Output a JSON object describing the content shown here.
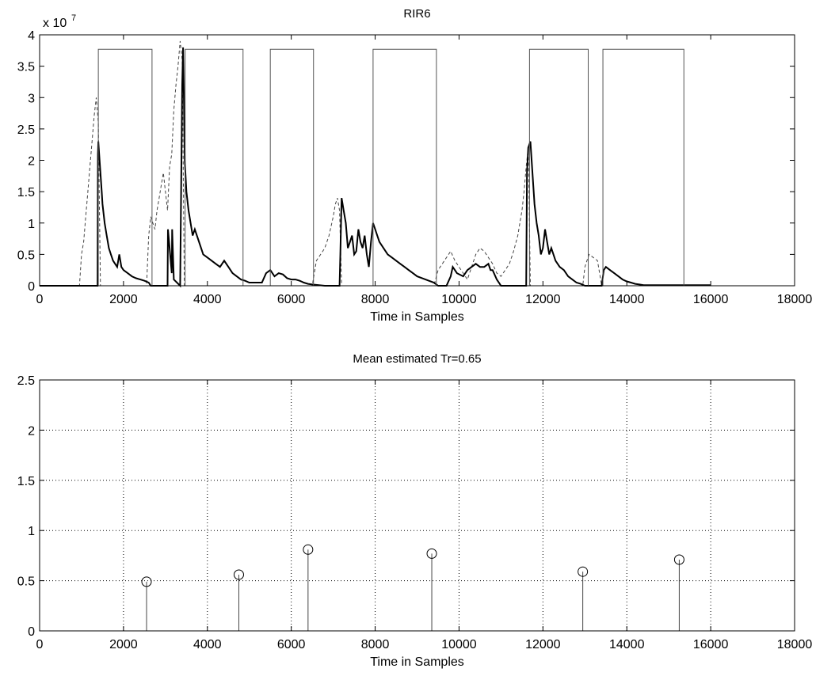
{
  "chart_data": [
    {
      "type": "line",
      "title": "RIR6",
      "xlabel": "Time in Samples",
      "ylabel": "",
      "xlim": [
        0,
        18000
      ],
      "ylim": [
        0,
        4
      ],
      "y_exponent_label": "x 10",
      "y_exponent": "7",
      "x_ticks": [
        "0",
        "2000",
        "4000",
        "6000",
        "8000",
        "10000",
        "12000",
        "14000",
        "16000",
        "18000"
      ],
      "y_ticks": [
        "0",
        "0.5",
        "1",
        "1.5",
        "2",
        "2.5",
        "3",
        "3.5",
        "4"
      ],
      "grid": false,
      "series": [
        {
          "style": "dashed",
          "x": [
            0,
            950,
            1000,
            1050,
            1100,
            1150,
            1200,
            1250,
            1300,
            1350,
            1400,
            1450,
            2550,
            2600,
            2650,
            2700,
            2750,
            2800,
            2850,
            2900,
            2950,
            3000,
            3050,
            3100,
            3150,
            3200,
            3250,
            3300,
            3350,
            3400,
            3450,
            6500,
            6600,
            6700,
            6800,
            6900,
            7000,
            7050,
            7100,
            7150,
            7200,
            9400,
            9500,
            9600,
            9700,
            9800,
            9900,
            10000,
            10100,
            10200,
            10300,
            10400,
            10500,
            10600,
            10700,
            10800,
            10900,
            11000,
            11100,
            11200,
            11300,
            11400,
            11450,
            11500,
            11550,
            11600,
            11650,
            11700,
            12950,
            13000,
            13050,
            13100,
            13200,
            13300,
            13400
          ],
          "y": [
            0,
            0,
            0.5,
            0.7,
            1.1,
            1.5,
            1.9,
            2.3,
            2.7,
            3.0,
            2.6,
            0,
            0,
            0.8,
            1.1,
            1.0,
            0.9,
            1.2,
            1.4,
            1.6,
            1.8,
            1.5,
            1.2,
            1.9,
            2.1,
            2.8,
            3.2,
            3.5,
            3.9,
            3.6,
            0,
            0,
            0.4,
            0.5,
            0.6,
            0.8,
            1.1,
            1.3,
            1.4,
            1.2,
            0,
            0,
            0.25,
            0.35,
            0.45,
            0.55,
            0.4,
            0.3,
            0.2,
            0.1,
            0.3,
            0.5,
            0.6,
            0.55,
            0.45,
            0.35,
            0.2,
            0.15,
            0.25,
            0.35,
            0.55,
            0.8,
            1.0,
            1.2,
            1.5,
            1.9,
            2.2,
            0,
            0,
            0.3,
            0.4,
            0.5,
            0.45,
            0.4,
            0
          ]
        },
        {
          "style": "solid-bold",
          "x": [
            0,
            1380,
            1390,
            1400,
            1430,
            1480,
            1500,
            1550,
            1600,
            1650,
            1700,
            1750,
            1800,
            1850,
            1900,
            1950,
            2000,
            2100,
            2200,
            2300,
            2400,
            2500,
            2600,
            2650,
            3050,
            3060,
            3100,
            3150,
            3160,
            3200,
            3350,
            3400,
            3420,
            3440,
            3460,
            3500,
            3550,
            3600,
            3650,
            3700,
            3800,
            3900,
            4000,
            4100,
            4200,
            4300,
            4400,
            4500,
            4600,
            4700,
            4800,
            4900,
            5000,
            5100,
            5200,
            5300,
            5400,
            5500,
            5600,
            5700,
            5800,
            5900,
            6000,
            6100,
            6200,
            6300,
            6400,
            6500,
            6800,
            7000,
            7150,
            7170,
            7200,
            7250,
            7300,
            7350,
            7400,
            7450,
            7500,
            7550,
            7600,
            7650,
            7700,
            7750,
            7800,
            7850,
            7900,
            7950,
            8000,
            8050,
            8100,
            8200,
            8300,
            8400,
            8500,
            8600,
            8700,
            8800,
            8900,
            9000,
            9200,
            9400,
            9500,
            9700,
            9800,
            9850,
            9900,
            9950,
            10100,
            10150,
            10200,
            10300,
            10400,
            10500,
            10600,
            10700,
            10750,
            10800,
            10900,
            11000,
            11600,
            11620,
            11650,
            11700,
            11750,
            11800,
            11850,
            11900,
            11950,
            12000,
            12050,
            12100,
            12150,
            12200,
            12250,
            12300,
            12350,
            12400,
            12500,
            12600,
            12700,
            12800,
            12900,
            13000,
            13400,
            13450,
            13500,
            13600,
            13700,
            13800,
            13900,
            14000,
            14100,
            14200,
            14300,
            14400,
            14600,
            15000,
            16000
          ],
          "y": [
            0,
            0,
            2.1,
            2.3,
            2.0,
            1.5,
            1.3,
            1.0,
            0.8,
            0.6,
            0.5,
            0.4,
            0.35,
            0.3,
            0.5,
            0.3,
            0.25,
            0.2,
            0.15,
            0.12,
            0.1,
            0.08,
            0.05,
            0,
            0,
            0.9,
            0.6,
            0.2,
            0.9,
            0.1,
            0,
            3.2,
            3.8,
            3.0,
            2.0,
            1.5,
            1.2,
            1.0,
            0.8,
            0.9,
            0.7,
            0.5,
            0.45,
            0.4,
            0.35,
            0.3,
            0.4,
            0.3,
            0.2,
            0.15,
            0.1,
            0.08,
            0.05,
            0.05,
            0.05,
            0.05,
            0.2,
            0.25,
            0.15,
            0.2,
            0.18,
            0.12,
            0.1,
            0.1,
            0.08,
            0.05,
            0.03,
            0.02,
            0,
            0,
            0,
            0.5,
            1.4,
            1.2,
            1.0,
            0.6,
            0.7,
            0.8,
            0.5,
            0.55,
            0.9,
            0.7,
            0.6,
            0.8,
            0.5,
            0.3,
            0.7,
            1.0,
            0.9,
            0.8,
            0.7,
            0.6,
            0.5,
            0.45,
            0.4,
            0.35,
            0.3,
            0.25,
            0.2,
            0.15,
            0.1,
            0.05,
            0,
            0,
            0.15,
            0.3,
            0.25,
            0.2,
            0.15,
            0.2,
            0.25,
            0.3,
            0.35,
            0.3,
            0.3,
            0.35,
            0.25,
            0.25,
            0.1,
            0,
            0,
            1.8,
            2.2,
            2.3,
            1.8,
            1.3,
            1.0,
            0.8,
            0.5,
            0.6,
            0.9,
            0.7,
            0.5,
            0.6,
            0.5,
            0.4,
            0.35,
            0.3,
            0.25,
            0.15,
            0.1,
            0.05,
            0.03,
            0,
            0,
            0.25,
            0.3,
            0.25,
            0.2,
            0.15,
            0.1,
            0.07,
            0.05,
            0.03,
            0.02,
            0.01,
            0.01,
            0.01,
            0.01
          ]
        },
        {
          "style": "solid-thin",
          "type": "gate",
          "y_high": 3.77,
          "segments": [
            [
              1400,
              2680
            ],
            [
              3470,
              4850
            ],
            [
              5500,
              6530
            ],
            [
              7950,
              9460
            ],
            [
              11680,
              13080
            ],
            [
              13430,
              15360
            ]
          ]
        }
      ]
    },
    {
      "type": "stem",
      "title": "Mean estimated Tr=0.65",
      "xlabel": "Time in Samples",
      "ylabel": "",
      "xlim": [
        0,
        18000
      ],
      "ylim": [
        0,
        2.5
      ],
      "x_ticks": [
        "0",
        "2000",
        "4000",
        "6000",
        "8000",
        "10000",
        "12000",
        "14000",
        "16000",
        "18000"
      ],
      "y_ticks": [
        "0",
        "0.5",
        "1",
        "1.5",
        "2",
        "2.5"
      ],
      "grid": true,
      "series": [
        {
          "x": [
            2550,
            4750,
            6400,
            9350,
            12950,
            15250
          ],
          "values": [
            0.49,
            0.56,
            0.81,
            0.77,
            0.59,
            0.71
          ]
        }
      ]
    }
  ]
}
